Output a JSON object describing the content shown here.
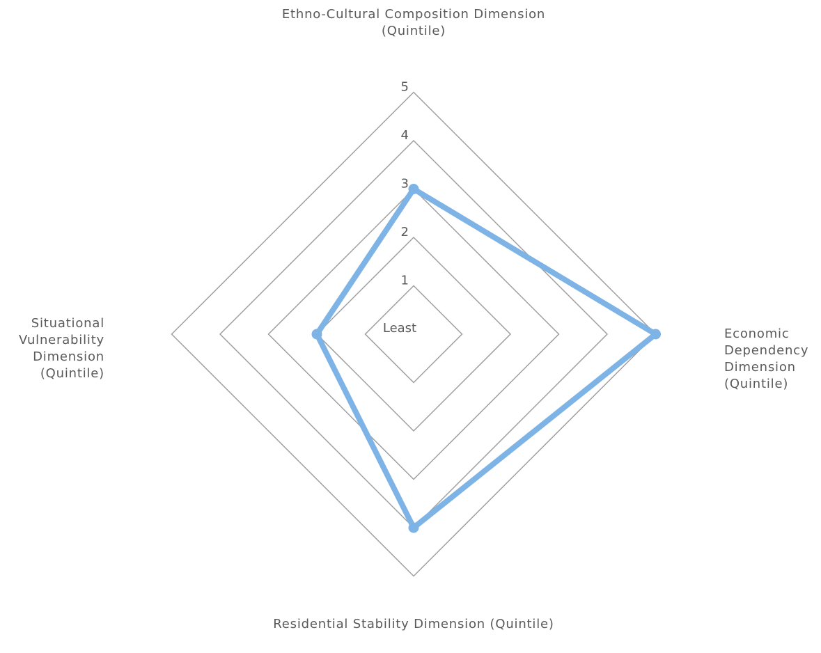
{
  "chart_data": {
    "type": "radar",
    "axes": [
      "Ethno-Cultural Composition Dimension\n(Quintile)",
      "Economic\nDependency\nDimension\n(Quintile)",
      "Residential Stability Dimension (Quintile)",
      "Situational\nVulnerability\nDimension\n(Quintile)"
    ],
    "radial_ticks": [
      "Least",
      "1",
      "2",
      "3",
      "4",
      "5"
    ],
    "rlim": [
      0,
      5
    ],
    "series": [
      {
        "values": [
          3,
          5,
          4,
          2
        ],
        "color": "#7EB3E6"
      }
    ],
    "grid_color": "#9E9E9E",
    "label_color": "#595959",
    "grid": true,
    "legend": "none"
  }
}
